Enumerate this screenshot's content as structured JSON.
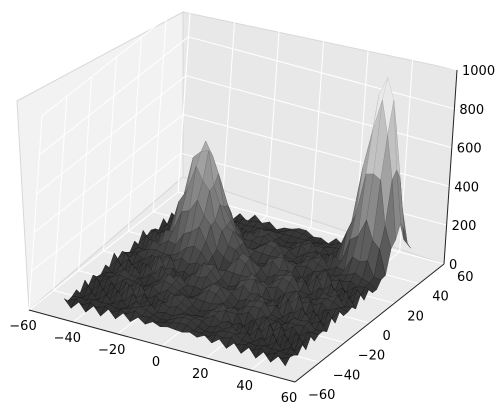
{
  "chart_data": {
    "type": "surface",
    "title": "",
    "xlabel": "",
    "ylabel": "",
    "zlabel": "",
    "x_ticks": [
      "−60",
      "−40",
      "−20",
      "0",
      "20",
      "40",
      "60"
    ],
    "y_ticks": [
      "−60",
      "−40",
      "−20",
      "0",
      "20",
      "40",
      "60"
    ],
    "z_ticks": [
      "0",
      "200",
      "400",
      "600",
      "800",
      "1000"
    ],
    "xlim": [
      -60,
      60
    ],
    "ylim": [
      -60,
      60
    ],
    "zlim": [
      0,
      1000
    ],
    "grid": true,
    "colormap": "gray",
    "peaks": [
      {
        "x": -25,
        "y": 15,
        "z": 520
      },
      {
        "x": 40,
        "y": 40,
        "z": 1000
      }
    ],
    "background_level": [
      20,
      150
    ]
  }
}
